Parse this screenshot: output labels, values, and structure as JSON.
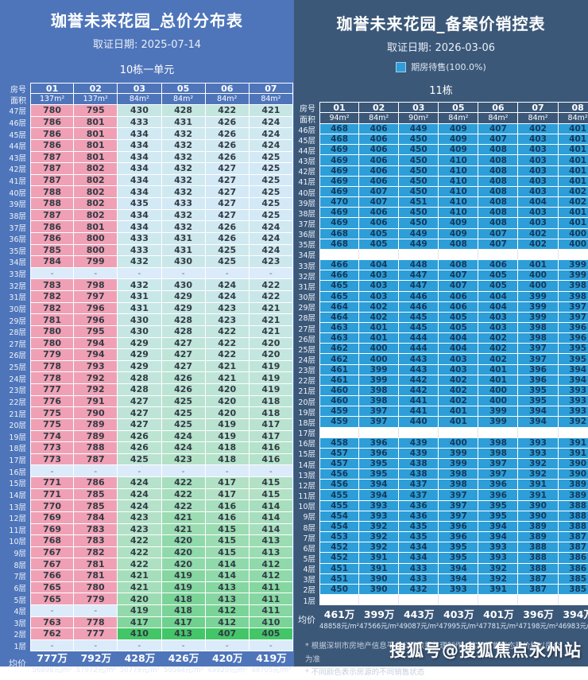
{
  "chart_data": [
    {
      "type": "table",
      "panel": "left",
      "title": "珈誉未来花园_总价分布表",
      "date_line": "取证日期: 2025-07-14",
      "building_label": "10栋一单元",
      "row_header": "房号",
      "area_header": "面积",
      "avg_label": "均价",
      "columns": [
        "01",
        "02",
        "03",
        "05",
        "06",
        "07"
      ],
      "areas": [
        "137m²",
        "137m²",
        "84m²",
        "84m²",
        "84m²",
        "84m²"
      ],
      "column_styles": [
        "pink",
        "pink",
        "heat",
        "heat",
        "heat",
        "heat"
      ],
      "floors": [
        "47层",
        "46层",
        "45层",
        "44层",
        "43层",
        "42层",
        "41层",
        "40层",
        "39层",
        "38层",
        "37层",
        "36层",
        "35层",
        "34层",
        "33层",
        "32层",
        "31层",
        "30层",
        "29层",
        "28层",
        "27层",
        "26层",
        "25层",
        "24层",
        "23层",
        "22层",
        "21层",
        "20层",
        "19层",
        "18层",
        "17层",
        "16层",
        "15层",
        "14层",
        "13层",
        "12层",
        "11层",
        "10层",
        "9层",
        "8层",
        "7层",
        "6层",
        "5层",
        "4层",
        "3层",
        "2层",
        "1层"
      ],
      "values": [
        [
          780,
          795,
          430,
          428,
          422,
          421
        ],
        [
          786,
          801,
          433,
          431,
          426,
          424
        ],
        [
          786,
          801,
          434,
          432,
          426,
          424
        ],
        [
          786,
          801,
          434,
          432,
          426,
          424
        ],
        [
          787,
          801,
          434,
          432,
          426,
          425
        ],
        [
          787,
          802,
          434,
          432,
          427,
          425
        ],
        [
          787,
          802,
          434,
          432,
          427,
          425
        ],
        [
          788,
          802,
          434,
          432,
          427,
          425
        ],
        [
          788,
          802,
          435,
          433,
          427,
          425
        ],
        [
          787,
          802,
          434,
          432,
          427,
          425
        ],
        [
          786,
          801,
          434,
          432,
          426,
          424
        ],
        [
          786,
          800,
          433,
          431,
          426,
          424
        ],
        [
          785,
          800,
          433,
          431,
          425,
          424
        ],
        [
          784,
          799,
          432,
          430,
          425,
          423
        ],
        [
          "-",
          "-",
          "-",
          "-",
          "-",
          "-"
        ],
        [
          783,
          798,
          432,
          430,
          424,
          422
        ],
        [
          782,
          797,
          431,
          429,
          424,
          422
        ],
        [
          782,
          796,
          431,
          429,
          423,
          421
        ],
        [
          781,
          796,
          430,
          428,
          423,
          421
        ],
        [
          780,
          795,
          430,
          428,
          422,
          421
        ],
        [
          780,
          794,
          429,
          427,
          422,
          420
        ],
        [
          779,
          794,
          429,
          427,
          422,
          420
        ],
        [
          778,
          793,
          429,
          427,
          421,
          419
        ],
        [
          778,
          792,
          428,
          426,
          421,
          419
        ],
        [
          777,
          792,
          428,
          426,
          420,
          419
        ],
        [
          776,
          791,
          427,
          425,
          420,
          418
        ],
        [
          775,
          790,
          427,
          425,
          420,
          418
        ],
        [
          775,
          789,
          427,
          425,
          419,
          417
        ],
        [
          774,
          789,
          426,
          424,
          419,
          417
        ],
        [
          773,
          788,
          426,
          424,
          418,
          416
        ],
        [
          773,
          787,
          425,
          423,
          418,
          416
        ],
        [
          "-",
          "-",
          "-",
          "-",
          "-",
          "-"
        ],
        [
          771,
          786,
          424,
          422,
          417,
          415
        ],
        [
          771,
          785,
          424,
          422,
          417,
          415
        ],
        [
          770,
          785,
          424,
          422,
          416,
          414
        ],
        [
          769,
          784,
          423,
          421,
          416,
          414
        ],
        [
          769,
          783,
          423,
          421,
          415,
          414
        ],
        [
          768,
          783,
          422,
          420,
          415,
          413
        ],
        [
          767,
          782,
          422,
          420,
          415,
          413
        ],
        [
          767,
          781,
          422,
          420,
          414,
          412
        ],
        [
          766,
          781,
          421,
          419,
          414,
          412
        ],
        [
          765,
          780,
          421,
          419,
          413,
          411
        ],
        [
          765,
          779,
          420,
          418,
          413,
          411
        ],
        [
          "-",
          "-",
          419,
          418,
          412,
          411
        ],
        [
          763,
          778,
          417,
          417,
          412,
          410
        ],
        [
          762,
          777,
          410,
          413,
          407,
          405
        ],
        [
          "-",
          "-",
          "-",
          "-",
          "-",
          "-"
        ]
      ],
      "avg": [
        [
          "777万",
          "56898元/m²"
        ],
        [
          "792万",
          "57972元/m²"
        ],
        [
          "428万",
          "50779元/m²"
        ],
        [
          "426万",
          "50564元/m²"
        ],
        [
          "420万",
          "49920元/m²"
        ],
        [
          "419万",
          "49705元/m²"
        ]
      ],
      "colors": {
        "pink": "#f0a0b4",
        "dash_bg": "#dcebf9",
        "heat_high": "#d3eaf6",
        "heat_mid": "#b2e1c6",
        "heat_low": "#42c668"
      }
    },
    {
      "type": "table",
      "panel": "right",
      "title": "珈誉未来花园_备案价销控表",
      "date_line": "取证日期: 2026-03-06",
      "legend_label": "期房待售(100.0%)",
      "legend_color": "#2d9ed7",
      "building_label": "11栋",
      "row_header": "房号",
      "area_header": "面积",
      "avg_label": "均价",
      "columns": [
        "01",
        "02",
        "03",
        "05",
        "06",
        "07",
        "08"
      ],
      "areas": [
        "94m²",
        "84m²",
        "90m²",
        "84m²",
        "84m²",
        "84m²",
        "84m²"
      ],
      "column_styles": [
        "uniform",
        "uniform",
        "uniform",
        "uniform",
        "uniform",
        "uniform",
        "uniform"
      ],
      "floors": [
        "46层",
        "45层",
        "44层",
        "43层",
        "42层",
        "41层",
        "40层",
        "39层",
        "38层",
        "37层",
        "36层",
        "35层",
        "34层",
        "33层",
        "32层",
        "31层",
        "30层",
        "29层",
        "28层",
        "27层",
        "26层",
        "25层",
        "24层",
        "23层",
        "22层",
        "21层",
        "20层",
        "19层",
        "18层",
        "17层",
        "16层",
        "15层",
        "14层",
        "13层",
        "12层",
        "11层",
        "10层",
        "9层",
        "8层",
        "7层",
        "6层",
        "5层",
        "4层",
        "3层",
        "2层",
        "1层"
      ],
      "values": [
        [
          468,
          406,
          449,
          409,
          407,
          402,
          401
        ],
        [
          468,
          406,
          450,
          409,
          407,
          403,
          401
        ],
        [
          469,
          406,
          450,
          409,
          408,
          403,
          401
        ],
        [
          469,
          406,
          450,
          410,
          408,
          403,
          401
        ],
        [
          469,
          406,
          450,
          410,
          408,
          403,
          401
        ],
        [
          469,
          406,
          450,
          410,
          408,
          403,
          401
        ],
        [
          469,
          407,
          450,
          410,
          408,
          403,
          402
        ],
        [
          470,
          407,
          451,
          410,
          408,
          404,
          402
        ],
        [
          469,
          406,
          450,
          410,
          408,
          403,
          401
        ],
        [
          469,
          406,
          450,
          409,
          408,
          403,
          401
        ],
        [
          468,
          405,
          449,
          409,
          407,
          402,
          400
        ],
        [
          468,
          405,
          449,
          408,
          407,
          402,
          400
        ],
        [
          "",
          "",
          "",
          "",
          "",
          "",
          ""
        ],
        [
          466,
          404,
          448,
          408,
          406,
          401,
          399
        ],
        [
          466,
          403,
          447,
          407,
          405,
          400,
          399
        ],
        [
          465,
          403,
          447,
          407,
          405,
          400,
          398
        ],
        [
          465,
          403,
          446,
          406,
          404,
          399,
          398
        ],
        [
          464,
          402,
          446,
          406,
          404,
          399,
          397
        ],
        [
          464,
          402,
          445,
          405,
          403,
          399,
          397
        ],
        [
          463,
          401,
          445,
          405,
          403,
          398,
          396
        ],
        [
          463,
          401,
          444,
          404,
          402,
          398,
          396
        ],
        [
          462,
          400,
          444,
          404,
          402,
          397,
          395
        ],
        [
          462,
          400,
          443,
          403,
          402,
          397,
          395
        ],
        [
          461,
          399,
          443,
          403,
          401,
          396,
          394
        ],
        [
          461,
          399,
          442,
          402,
          401,
          396,
          394
        ],
        [
          460,
          398,
          442,
          402,
          400,
          395,
          393
        ],
        [
          460,
          398,
          441,
          402,
          400,
          395,
          393
        ],
        [
          459,
          397,
          441,
          401,
          399,
          394,
          393
        ],
        [
          459,
          397,
          440,
          401,
          399,
          394,
          392
        ],
        [
          "",
          "",
          "",
          "",
          "",
          "",
          ""
        ],
        [
          458,
          396,
          439,
          400,
          398,
          393,
          391
        ],
        [
          457,
          396,
          439,
          399,
          398,
          393,
          391
        ],
        [
          457,
          395,
          438,
          399,
          397,
          392,
          390
        ],
        [
          456,
          395,
          438,
          398,
          397,
          392,
          390
        ],
        [
          456,
          394,
          437,
          398,
          396,
          391,
          389
        ],
        [
          455,
          394,
          437,
          397,
          396,
          391,
          389
        ],
        [
          455,
          393,
          436,
          397,
          395,
          390,
          388
        ],
        [
          454,
          393,
          436,
          397,
          395,
          390,
          388
        ],
        [
          454,
          392,
          435,
          396,
          394,
          389,
          388
        ],
        [
          453,
          392,
          435,
          396,
          394,
          389,
          387
        ],
        [
          452,
          392,
          434,
          395,
          393,
          388,
          387
        ],
        [
          452,
          391,
          434,
          395,
          393,
          388,
          386
        ],
        [
          451,
          391,
          433,
          394,
          392,
          388,
          386
        ],
        [
          451,
          390,
          433,
          394,
          392,
          387,
          385
        ],
        [
          450,
          390,
          432,
          393,
          391,
          387,
          385
        ],
        [
          "",
          "",
          "",
          "",
          "",
          "",
          ""
        ]
      ],
      "avg": [
        [
          "461万",
          "48858元/m²"
        ],
        [
          "399万",
          "47566元/m²"
        ],
        [
          "443万",
          "49087元/m²"
        ],
        [
          "403万",
          "47995元/m²"
        ],
        [
          "401万",
          "47781元/m²"
        ],
        [
          "396万",
          "47198元/m²"
        ],
        [
          "394万",
          "46983元/m²"
        ]
      ],
      "colors": {
        "cell_bg": "#2d9ed7",
        "dash_bg": "#dcebf9",
        "heat_high": "#d3eaf6",
        "heat_mid": "#b2e1c6",
        "heat_low": "#42c668"
      },
      "notes": [
        "* 根据深圳市房地产信息平台公开数据整理制作，实际销售状态和价格以房企为准",
        "* 不同颜色表示房源的不同销售状态"
      ],
      "watermark": "搜狐号@搜狐焦点永州站"
    }
  ],
  "page": {
    "bg_left": "#4e74ba",
    "bg_right": "#3c5878"
  }
}
